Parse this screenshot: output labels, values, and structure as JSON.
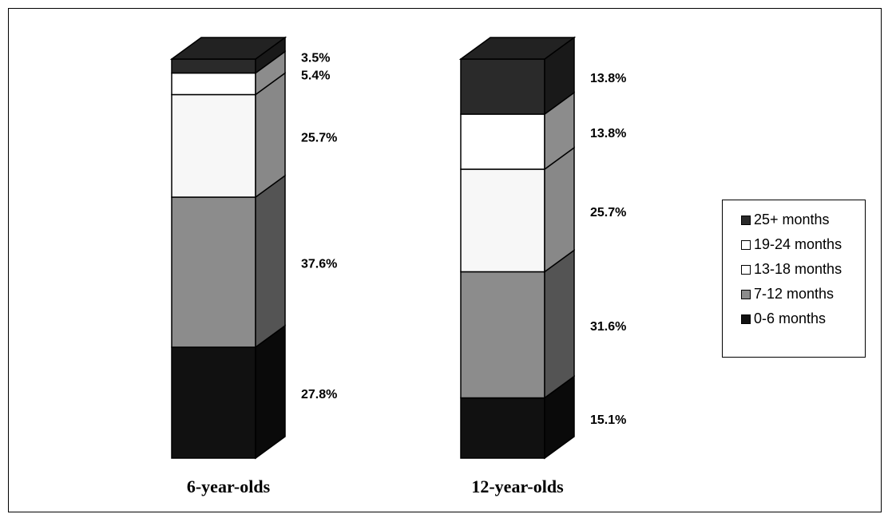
{
  "chart_data": {
    "type": "bar",
    "stacked": true,
    "three_d": true,
    "title": "",
    "xlabel": "",
    "ylabel": "",
    "ylim": [
      0,
      100
    ],
    "grid": false,
    "legend_position": "right",
    "categories": [
      "6-year-olds",
      "12-year-olds"
    ],
    "series": [
      {
        "name": "0-6 months",
        "color": "#111111",
        "values": [
          27.8,
          15.1
        ]
      },
      {
        "name": "7-12 months",
        "color": "#8c8c8c",
        "values": [
          37.6,
          31.6
        ]
      },
      {
        "name": "13-18 months",
        "color": "#f7f7f7",
        "values": [
          25.7,
          25.7
        ]
      },
      {
        "name": "19-24 months",
        "color": "#ffffff",
        "values": [
          5.4,
          13.8
        ]
      },
      {
        "name": "25+ months",
        "color": "#2a2a2a",
        "values": [
          3.5,
          13.8
        ]
      }
    ],
    "data_labels": [
      [
        "27.8%",
        "37.6%",
        "25.7%",
        "5.4%",
        "3.5%"
      ],
      [
        "15.1%",
        "31.6%",
        "25.7%",
        "13.8%",
        "13.8%"
      ]
    ]
  },
  "legend": {
    "items": [
      {
        "label": "25+ months",
        "color": "#2a2a2a"
      },
      {
        "label": "19-24 months",
        "color": "#ffffff"
      },
      {
        "label": "13-18 months",
        "color": "#ffffff"
      },
      {
        "label": "7-12 months",
        "color": "#8c8c8c"
      },
      {
        "label": "0-6 months",
        "color": "#111111"
      }
    ]
  }
}
